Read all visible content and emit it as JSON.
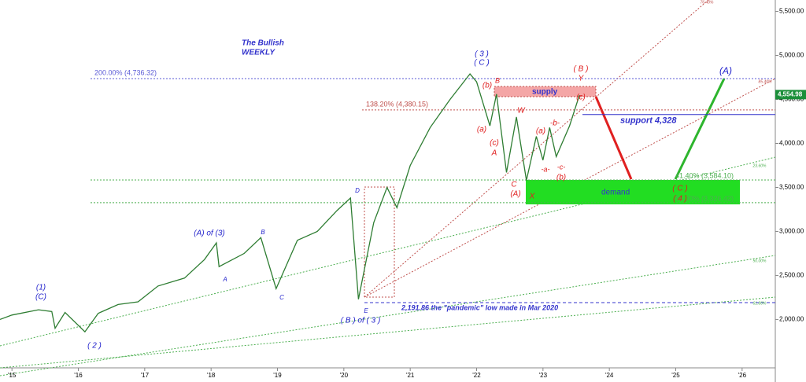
{
  "chart_data": {
    "type": "line",
    "title": "The Bullish",
    "subtitle": "WEEKLY",
    "x": [
      2014.82,
      2015.0,
      2015.4,
      2015.6,
      2015.65,
      2015.8,
      2016.1,
      2016.3,
      2016.6,
      2016.9,
      2017.2,
      2017.6,
      2017.9,
      2018.08,
      2018.12,
      2018.5,
      2018.75,
      2018.98,
      2019.3,
      2019.6,
      2019.9,
      2020.1,
      2020.22,
      2020.45,
      2020.65,
      2020.8,
      2021.0,
      2021.3,
      2021.6,
      2021.9,
      2022.0,
      2022.2,
      2022.3,
      2022.45,
      2022.6,
      2022.75,
      2022.9,
      2023.0,
      2023.1,
      2023.2,
      2023.4,
      2023.55
    ],
    "series": [
      {
        "color": "#2e7d32",
        "values": [
          2000,
          2050,
          2110,
          2090,
          1900,
          2080,
          1860,
          2070,
          2170,
          2200,
          2380,
          2470,
          2680,
          2870,
          2600,
          2750,
          2930,
          2350,
          2900,
          3000,
          3240,
          3380,
          2230,
          3100,
          3500,
          3270,
          3750,
          4180,
          4500,
          4790,
          4700,
          4200,
          4560,
          3670,
          4300,
          3580,
          4080,
          3810,
          4180,
          3850,
          4200,
          4550
        ]
      }
    ],
    "xlim": [
      2014.82,
      2026.5
    ],
    "ylim": [
      1450,
      5630
    ],
    "xticks": [
      {
        "value": 2015,
        "label": "'15"
      },
      {
        "value": 2016,
        "label": "'16"
      },
      {
        "value": 2017,
        "label": "'17"
      },
      {
        "value": 2018,
        "label": "'18"
      },
      {
        "value": 2019,
        "label": "'19"
      },
      {
        "value": 2020,
        "label": "'20"
      },
      {
        "value": 2021,
        "label": "'21"
      },
      {
        "value": 2022,
        "label": "'22"
      },
      {
        "value": 2023,
        "label": "'23"
      },
      {
        "value": 2024,
        "label": "'24"
      },
      {
        "value": 2025,
        "label": "'25"
      },
      {
        "value": 2026,
        "label": "'26"
      }
    ],
    "yticks": [
      {
        "value": 2000,
        "label": "2,000.00"
      },
      {
        "value": 2500,
        "label": "2,500.00"
      },
      {
        "value": 3000,
        "label": "3,000.00"
      },
      {
        "value": 3500,
        "label": "3,500.00"
      },
      {
        "value": 4000,
        "label": "4,000.00"
      },
      {
        "value": 4500,
        "label": "4,500.00"
      },
      {
        "value": 5000,
        "label": "5,000.00"
      },
      {
        "value": 5500,
        "label": "5,500.00"
      }
    ],
    "last_price": {
      "value": 4554.98,
      "label": "4,554.98"
    },
    "levels": [
      {
        "label": "200.00% (4,736.32)",
        "value": 4736.32,
        "color": "#5b5bd6"
      },
      {
        "label": "138.20% (4,380.15)",
        "value": 4380.15,
        "color": "#c0504d"
      },
      {
        "label": "support 4,328",
        "value": 4328,
        "color": "#3333cc"
      },
      {
        "label": "41.40% (3,584.10)",
        "value": 3584.1,
        "color": "#4caf50"
      },
      {
        "label": "50.00% (3,326.42)",
        "value": 3326.42,
        "color": "#4caf50"
      },
      {
        "label": "2,191.86 the \"pandemic\" low made in Mar 2020",
        "value": 2191.86,
        "color": "#3333cc"
      }
    ],
    "zones": [
      "supply",
      "demand"
    ],
    "annotations": [
      "(1)",
      "(C)",
      "( 2 )",
      "(A) of (3)",
      "A",
      "B",
      "C",
      "D",
      "E",
      "( B ) of ( 3 )",
      "( 3 )",
      "( C )",
      "(b)",
      "B",
      "W",
      "(a)",
      "(c)",
      "A",
      "C",
      "(A)",
      "X",
      "(a)",
      "-b-",
      "-a-",
      "-c-",
      "(b)",
      "( B )",
      "Y",
      "(c)",
      "(A)",
      "( C )",
      "( 4 )",
      "76.40%",
      "85.40%",
      "23.60%",
      "50.00%",
      "61.80%"
    ]
  }
}
